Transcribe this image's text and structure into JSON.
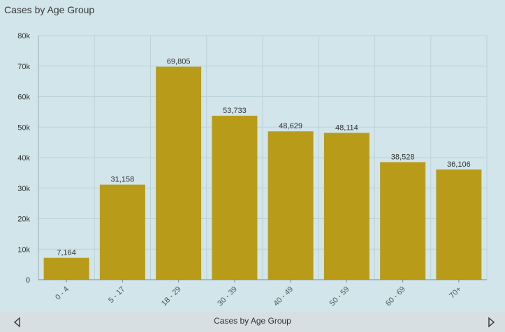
{
  "title": "Cases by Age Group",
  "footer": {
    "label": "Cases by Age Group"
  },
  "colors": {
    "bar": "#b89c19",
    "background": "#d1e5ea",
    "grid": "#bcd3da",
    "footer": "#d8dfe2"
  },
  "chart_data": {
    "type": "bar",
    "title": "Cases by Age Group",
    "xlabel": "",
    "ylabel": "",
    "categories": [
      "0 - 4",
      "5 - 17",
      "18 - 29",
      "30 - 39",
      "40 - 49",
      "50 - 59",
      "60 - 69",
      "70+"
    ],
    "values": [
      7164,
      31158,
      69805,
      53733,
      48629,
      48114,
      38528,
      36106
    ],
    "data_labels": [
      "7,164",
      "31,158",
      "69,805",
      "53,733",
      "48,629",
      "48,114",
      "38,528",
      "36,106"
    ],
    "ylim": [
      0,
      80000
    ],
    "y_ticks": [
      {
        "value": 0,
        "label": "0"
      },
      {
        "value": 10000,
        "label": "10k"
      },
      {
        "value": 20000,
        "label": "20k"
      },
      {
        "value": 30000,
        "label": "30k"
      },
      {
        "value": 40000,
        "label": "40k"
      },
      {
        "value": 50000,
        "label": "50k"
      },
      {
        "value": 60000,
        "label": "60k"
      },
      {
        "value": 70000,
        "label": "70k"
      },
      {
        "value": 80000,
        "label": "80k"
      }
    ],
    "grid": true,
    "legend": "none"
  }
}
